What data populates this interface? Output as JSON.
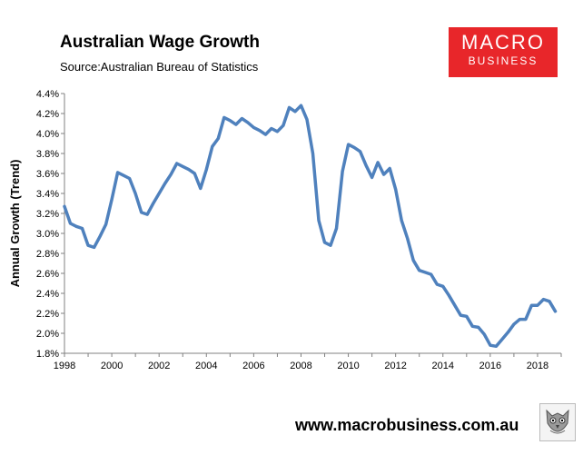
{
  "title": "Australian Wage Growth",
  "source": "Source:Australian Bureau of Statistics",
  "logo": {
    "line1": "MACRO",
    "line2": "BUSINESS"
  },
  "website": "www.macrobusiness.com.au",
  "colors": {
    "line": "#4f81bd",
    "logo_bg": "#e8262a",
    "axis": "#808080"
  },
  "chart_data": {
    "type": "line",
    "title": "Australian Wage Growth",
    "xlabel": "",
    "ylabel": "Annual Growth (Trend)",
    "xlim": [
      1998,
      2019
    ],
    "ylim": [
      1.8,
      4.4
    ],
    "x_ticks": [
      1998,
      2000,
      2002,
      2004,
      2006,
      2008,
      2010,
      2012,
      2014,
      2016,
      2018
    ],
    "y_ticks": [
      "1.8%",
      "2.0%",
      "2.2%",
      "2.4%",
      "2.6%",
      "2.8%",
      "3.0%",
      "3.2%",
      "3.4%",
      "3.6%",
      "3.8%",
      "4.0%",
      "4.2%",
      "4.4%"
    ],
    "grid": false,
    "legend": "none",
    "series": [
      {
        "x": [
          1998.0,
          1998.25,
          1998.5,
          1998.75,
          1999.0,
          1999.25,
          1999.5,
          1999.75,
          2000.0,
          2000.25,
          2000.5,
          2000.75,
          2001.0,
          2001.25,
          2001.5,
          2001.75,
          2002.0,
          2002.25,
          2002.5,
          2002.75,
          2003.0,
          2003.25,
          2003.5,
          2003.75,
          2004.0,
          2004.25,
          2004.5,
          2004.75,
          2005.0,
          2005.25,
          2005.5,
          2005.75,
          2006.0,
          2006.25,
          2006.5,
          2006.75,
          2007.0,
          2007.25,
          2007.5,
          2007.75,
          2008.0,
          2008.25,
          2008.5,
          2008.75,
          2009.0,
          2009.25,
          2009.5,
          2009.75,
          2010.0,
          2010.25,
          2010.5,
          2010.75,
          2011.0,
          2011.25,
          2011.5,
          2011.75,
          2012.0,
          2012.25,
          2012.5,
          2012.75,
          2013.0,
          2013.25,
          2013.5,
          2013.75,
          2014.0,
          2014.25,
          2014.5,
          2014.75,
          2015.0,
          2015.25,
          2015.5,
          2015.75,
          2016.0,
          2016.25,
          2016.5,
          2016.75,
          2017.0,
          2017.25,
          2017.5,
          2017.75,
          2018.0,
          2018.25,
          2018.5,
          2018.75
        ],
        "values": [
          3.27,
          3.1,
          3.07,
          3.05,
          2.88,
          2.86,
          2.97,
          3.09,
          3.34,
          3.61,
          3.58,
          3.55,
          3.4,
          3.21,
          3.19,
          3.3,
          3.4,
          3.5,
          3.59,
          3.7,
          3.67,
          3.64,
          3.6,
          3.45,
          3.64,
          3.87,
          3.95,
          4.16,
          4.13,
          4.09,
          4.15,
          4.11,
          4.06,
          4.03,
          3.99,
          4.05,
          4.02,
          4.08,
          4.26,
          4.22,
          4.28,
          4.14,
          3.8,
          3.13,
          2.91,
          2.88,
          3.05,
          3.62,
          3.89,
          3.86,
          3.82,
          3.68,
          3.56,
          3.71,
          3.59,
          3.65,
          3.44,
          3.13,
          2.95,
          2.73,
          2.63,
          2.61,
          2.59,
          2.49,
          2.47,
          2.38,
          2.28,
          2.18,
          2.17,
          2.07,
          2.06,
          1.99,
          1.88,
          1.87,
          1.94,
          2.01,
          2.09,
          2.14,
          2.14,
          2.28,
          2.28,
          2.34,
          2.32,
          2.22
        ]
      }
    ]
  }
}
